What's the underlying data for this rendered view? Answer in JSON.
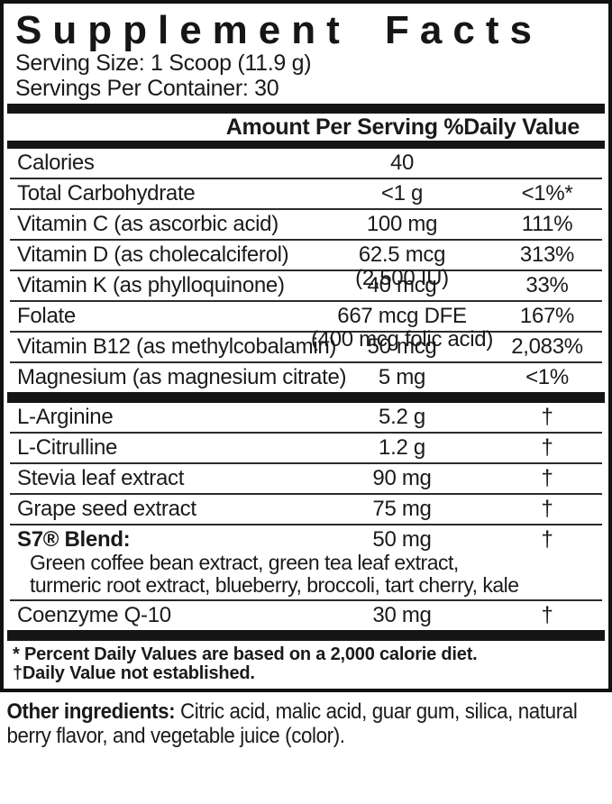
{
  "title": "Supplement Facts",
  "serving": {
    "size": "Serving Size: 1 Scoop (11.9 g)",
    "per_container": "Servings Per Container: 30"
  },
  "column_header": "Amount Per Serving %Daily Value",
  "rows": [
    {
      "name": "Calories",
      "amount": "40",
      "amount2": "",
      "dv": ""
    },
    {
      "name": "Total Carbohydrate",
      "amount": "<1 g",
      "amount2": "",
      "dv": "<1%*"
    },
    {
      "name": "Vitamin C (as ascorbic acid)",
      "amount": "100 mg",
      "amount2": "",
      "dv": "111%"
    },
    {
      "name": "Vitamin D (as cholecalciferol)",
      "amount": "62.5 mcg",
      "amount2": "(2,500 IU)",
      "dv": "313%"
    },
    {
      "name": "Vitamin K (as phylloquinone)",
      "amount": "40 mcg",
      "amount2": "",
      "dv": "33%"
    },
    {
      "name": "Folate",
      "amount": "667 mcg DFE",
      "amount2": "(400 mcg folic acid)",
      "dv": "167%"
    },
    {
      "name": "Vitamin B12 (as methylcobalamin)",
      "amount": "50 mcg",
      "amount2": "",
      "dv": "2,083%"
    },
    {
      "name": "Magnesium (as magnesium citrate)",
      "amount": "5 mg",
      "amount2": "",
      "dv": "<1%"
    },
    {
      "name": "L-Arginine",
      "amount": "5.2 g",
      "amount2": "",
      "dv": "†"
    },
    {
      "name": "L-Citrulline",
      "amount": "1.2 g",
      "amount2": "",
      "dv": "†"
    },
    {
      "name": "Stevia leaf extract",
      "amount": "90 mg",
      "amount2": "",
      "dv": "†"
    },
    {
      "name": "Grape seed extract",
      "amount": "75 mg",
      "amount2": "",
      "dv": "†"
    },
    {
      "name": "S7® Blend:",
      "amount": "50 mg",
      "amount2": "",
      "dv": "†",
      "sub1": "Green coffee bean extract, green tea leaf extract,",
      "sub2": "turmeric root extract, blueberry, broccoli, tart cherry, kale"
    },
    {
      "name": "Coenzyme Q-10",
      "amount": "30 mg",
      "amount2": "",
      "dv": "†"
    }
  ],
  "footnotes": [
    "* Percent Daily Values are based on a 2,000 calorie diet.",
    "†Daily Value not established."
  ],
  "other_ingredients": {
    "label": "Other ingredients:",
    "line1": " Citric acid, malic acid, guar gum, silica, natural",
    "line2": "berry flavor, and vegetable juice (color)."
  },
  "colors": {
    "text": "#1a1a1a",
    "border": "#111111",
    "background": "#ffffff"
  }
}
